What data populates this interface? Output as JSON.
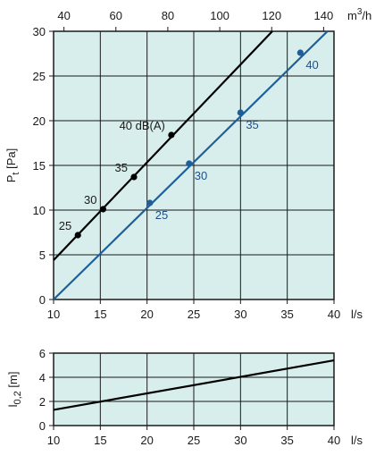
{
  "colors": {
    "plot_bg": "#d7eeec",
    "grid": "#1a1a1a",
    "black_series": "#000000",
    "blue_series": "#1f5f99",
    "blue_text": "#1f4f8a"
  },
  "chart_data": [
    {
      "type": "line",
      "xlabel": "l/s",
      "ylabel": "P",
      "ylabel_sub": "t",
      "ylabel_unit": "[Pa]",
      "top_axis_label": "m",
      "top_axis_label_sup": "3",
      "top_axis_label_tail": "/h",
      "xlim": [
        10,
        40
      ],
      "ylim": [
        0,
        30
      ],
      "x_ticks": [
        "10",
        "15",
        "20",
        "25",
        "30",
        "35",
        "40"
      ],
      "y_ticks": [
        "0",
        "5",
        "10",
        "15",
        "20",
        "25",
        "30"
      ],
      "top_ticks": [
        "40",
        "60",
        "80",
        "100",
        "120",
        "140"
      ],
      "top_tick_values": [
        40,
        60,
        80,
        100,
        120,
        140
      ],
      "grid": true,
      "series": [
        {
          "color": "black",
          "line": [
            [
              10,
              4.4
            ],
            [
              33.4,
              30
            ]
          ],
          "points": [
            {
              "x": 12.6,
              "y": 7.2,
              "label": "25"
            },
            {
              "x": 15.3,
              "y": 10.1,
              "label": "30"
            },
            {
              "x": 18.6,
              "y": 13.7,
              "label": "35"
            },
            {
              "x": 22.6,
              "y": 18.4,
              "label": "40 dB(A)"
            }
          ]
        },
        {
          "color": "blue",
          "line": [
            [
              10,
              0
            ],
            [
              39.3,
              30
            ]
          ],
          "points": [
            {
              "x": 20.3,
              "y": 10.8,
              "label": "25"
            },
            {
              "x": 24.5,
              "y": 15.2,
              "label": "30"
            },
            {
              "x": 30.0,
              "y": 20.9,
              "label": "35"
            },
            {
              "x": 36.4,
              "y": 27.6,
              "label": "40"
            }
          ]
        }
      ]
    },
    {
      "type": "line",
      "xlabel": "l/s",
      "ylabel": "l",
      "ylabel_sub": "0,2",
      "ylabel_unit": "[m]",
      "xlim": [
        10,
        40
      ],
      "ylim": [
        0,
        6
      ],
      "x_ticks": [
        "10",
        "15",
        "20",
        "25",
        "30",
        "35",
        "40"
      ],
      "y_ticks": [
        "0",
        "2",
        "4",
        "6"
      ],
      "grid": true,
      "series": [
        {
          "color": "black",
          "line": [
            [
              10,
              1.3
            ],
            [
              40,
              5.4
            ]
          ]
        }
      ]
    }
  ]
}
